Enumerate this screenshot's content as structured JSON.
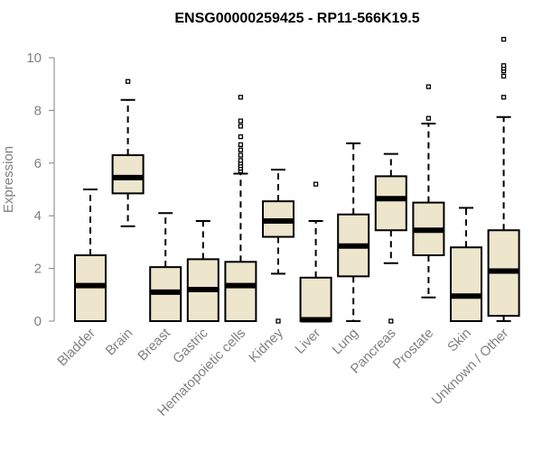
{
  "chart_data": {
    "type": "box",
    "title": "ENSG00000259425 - RP11-566K19.5",
    "xlabel": "",
    "ylabel": "Expression",
    "ylim": [
      0,
      10.5
    ],
    "yticks": [
      0,
      2,
      4,
      6,
      8,
      10
    ],
    "grid": false,
    "colors": {
      "box_fill": "#ede6cc",
      "stroke": "#000000",
      "axis_text": "#808080"
    },
    "categories": [
      "Bladder",
      "Brain",
      "Breast",
      "Gastric",
      "Hematopoietic cells",
      "Kidney",
      "Liver",
      "Lung",
      "Pancreas",
      "Prostate",
      "Skin",
      "Unknown / Other"
    ],
    "boxes": [
      {
        "category": "Bladder",
        "whisker_low": 0,
        "q1": 0,
        "median": 1.35,
        "q3": 2.5,
        "whisker_high": 5.0,
        "outliers": []
      },
      {
        "category": "Brain",
        "whisker_low": 3.6,
        "q1": 4.85,
        "median": 5.45,
        "q3": 6.3,
        "whisker_high": 8.4,
        "outliers": [
          9.1
        ]
      },
      {
        "category": "Breast",
        "whisker_low": 0,
        "q1": 0,
        "median": 1.1,
        "q3": 2.05,
        "whisker_high": 4.1,
        "outliers": []
      },
      {
        "category": "Gastric",
        "whisker_low": 0,
        "q1": 0,
        "median": 1.2,
        "q3": 2.35,
        "whisker_high": 3.8,
        "outliers": []
      },
      {
        "category": "Hematopoietic cells",
        "whisker_low": 0,
        "q1": 0,
        "median": 1.35,
        "q3": 2.25,
        "whisker_high": 5.6,
        "outliers": [
          5.7,
          5.8,
          5.9,
          6.0,
          6.1,
          6.3,
          6.5,
          6.7,
          7.0,
          7.4,
          7.6,
          8.5
        ]
      },
      {
        "category": "Kidney",
        "whisker_low": 1.8,
        "q1": 3.2,
        "median": 3.8,
        "q3": 4.55,
        "whisker_high": 5.75,
        "outliers": [
          0
        ]
      },
      {
        "category": "Liver",
        "whisker_low": 0,
        "q1": 0,
        "median": 0.05,
        "q3": 1.65,
        "whisker_high": 3.8,
        "outliers": [
          5.2
        ]
      },
      {
        "category": "Lung",
        "whisker_low": 0,
        "q1": 1.7,
        "median": 2.85,
        "q3": 4.05,
        "whisker_high": 6.75,
        "outliers": []
      },
      {
        "category": "Pancreas",
        "whisker_low": 2.2,
        "q1": 3.45,
        "median": 4.65,
        "q3": 5.5,
        "whisker_high": 6.35,
        "outliers": [
          0
        ]
      },
      {
        "category": "Prostate",
        "whisker_low": 0.9,
        "q1": 2.5,
        "median": 3.45,
        "q3": 4.5,
        "whisker_high": 7.5,
        "outliers": [
          7.7,
          8.9
        ]
      },
      {
        "category": "Skin",
        "whisker_low": 0,
        "q1": 0,
        "median": 0.95,
        "q3": 2.8,
        "whisker_high": 4.3,
        "outliers": []
      },
      {
        "category": "Unknown / Other",
        "whisker_low": 0,
        "q1": 0.2,
        "median": 1.9,
        "q3": 3.45,
        "whisker_high": 7.75,
        "outliers": [
          8.5,
          9.3,
          9.5,
          9.6,
          9.7,
          10.7
        ]
      }
    ]
  }
}
